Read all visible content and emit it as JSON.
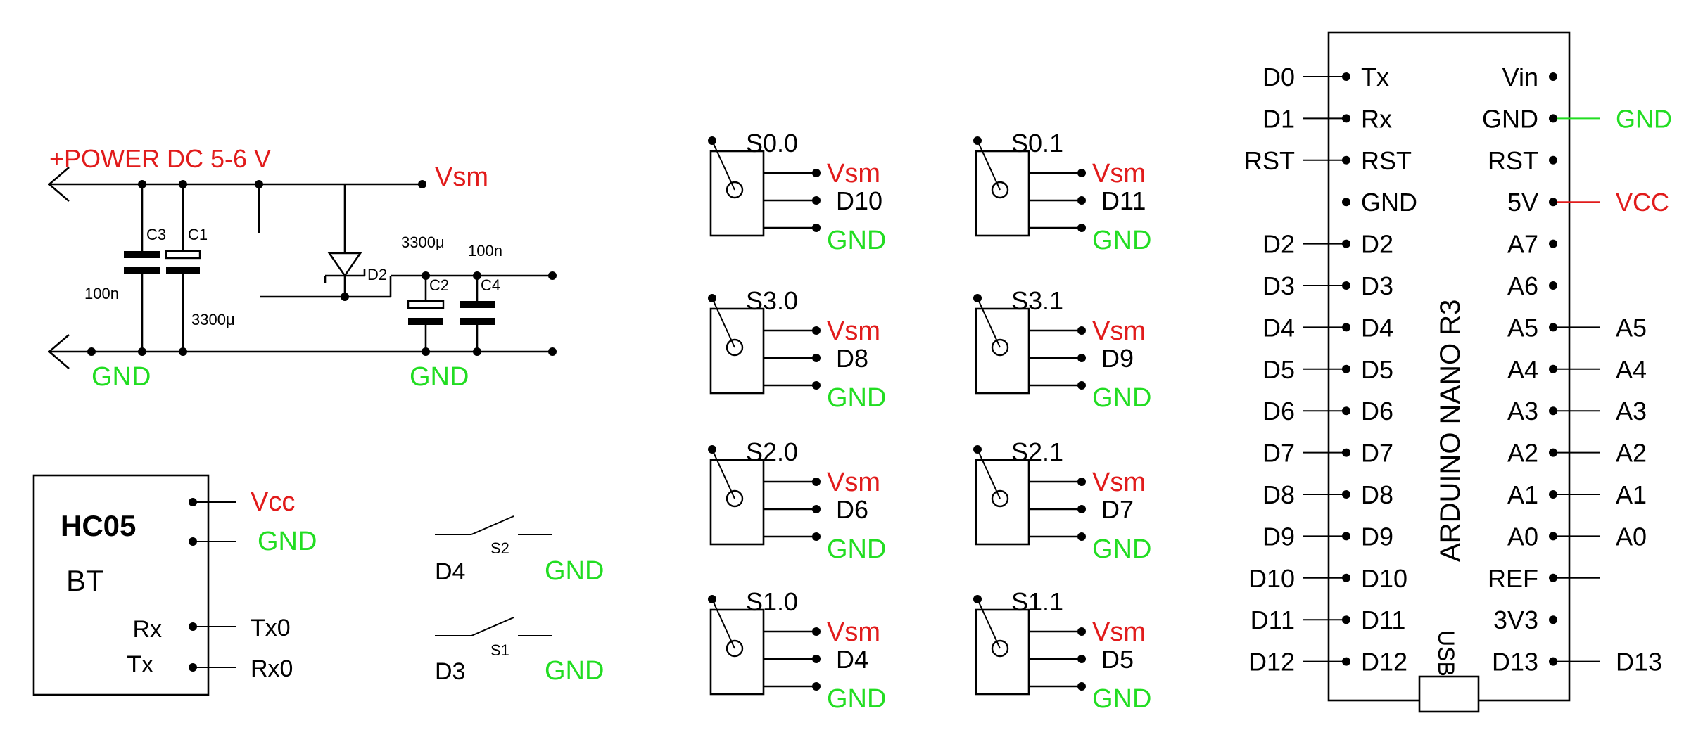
{
  "colors": {
    "power": "#e11b1b",
    "ground": "#22dd22",
    "wire": "#000000"
  },
  "power_supply": {
    "title": "+POWER DC 5-6 V",
    "vsm": "Vsm",
    "gnd_left": "GND",
    "gnd_right": "GND",
    "c3": "C3",
    "c1": "C1",
    "c2": "C2",
    "c4": "C4",
    "d2": "D2",
    "val_100n_left": "100n",
    "val_3300_left": "3300μ",
    "val_3300_right": "3300μ",
    "val_100n_right": "100n"
  },
  "hc05": {
    "name": "HC05",
    "subtitle": "BT",
    "pin_rx": "Rx",
    "pin_tx": "Tx",
    "vcc": "Vcc",
    "gnd": "GND",
    "tx0": "Tx0",
    "rx0": "Rx0"
  },
  "switches": [
    {
      "ref": "S2",
      "pin": "D4",
      "gnd": "GND"
    },
    {
      "ref": "S1",
      "pin": "D3",
      "gnd": "GND"
    }
  ],
  "servos": [
    {
      "name": "S0.0",
      "vsm": "Vsm",
      "signal": "D10",
      "gnd": "GND"
    },
    {
      "name": "S0.1",
      "vsm": "Vsm",
      "signal": "D11",
      "gnd": "GND"
    },
    {
      "name": "S3.0",
      "vsm": "Vsm",
      "signal": "D8",
      "gnd": "GND"
    },
    {
      "name": "S3.1",
      "vsm": "Vsm",
      "signal": "D9",
      "gnd": "GND"
    },
    {
      "name": "S2.0",
      "vsm": "Vsm",
      "signal": "D6",
      "gnd": "GND"
    },
    {
      "name": "S2.1",
      "vsm": "Vsm",
      "signal": "D7",
      "gnd": "GND"
    },
    {
      "name": "S1.0",
      "vsm": "Vsm",
      "signal": "D4",
      "gnd": "GND"
    },
    {
      "name": "S1.1",
      "vsm": "Vsm",
      "signal": "D5",
      "gnd": "GND"
    }
  ],
  "arduino": {
    "name": "ARDUINO NANO R3",
    "usb": "USB",
    "left_pins": [
      {
        "outer": "D0",
        "inner": "Tx"
      },
      {
        "outer": "D1",
        "inner": "Rx"
      },
      {
        "outer": "RST",
        "inner": "RST"
      },
      {
        "outer": "",
        "inner": "GND"
      },
      {
        "outer": "D2",
        "inner": "D2"
      },
      {
        "outer": "D3",
        "inner": "D3"
      },
      {
        "outer": "D4",
        "inner": "D4"
      },
      {
        "outer": "D5",
        "inner": "D5"
      },
      {
        "outer": "D6",
        "inner": "D6"
      },
      {
        "outer": "D7",
        "inner": "D7"
      },
      {
        "outer": "D8",
        "inner": "D8"
      },
      {
        "outer": "D9",
        "inner": "D9"
      },
      {
        "outer": "D10",
        "inner": "D10"
      },
      {
        "outer": "D11",
        "inner": "D11"
      },
      {
        "outer": "D12",
        "inner": "D12"
      }
    ],
    "right_pins": [
      {
        "inner": "Vin",
        "outer": ""
      },
      {
        "inner": "GND",
        "outer": "GND"
      },
      {
        "inner": "RST",
        "outer": ""
      },
      {
        "inner": "5V",
        "outer": "VCC"
      },
      {
        "inner": "A7",
        "outer": ""
      },
      {
        "inner": "A6",
        "outer": ""
      },
      {
        "inner": "A5",
        "outer": "A5"
      },
      {
        "inner": "A4",
        "outer": "A4"
      },
      {
        "inner": "A3",
        "outer": "A3"
      },
      {
        "inner": "A2",
        "outer": "A2"
      },
      {
        "inner": "A1",
        "outer": "A1"
      },
      {
        "inner": "A0",
        "outer": "A0"
      },
      {
        "inner": "REF",
        "outer": ""
      },
      {
        "inner": "3V3",
        "outer": ""
      },
      {
        "inner": "D13",
        "outer": "D13"
      }
    ]
  }
}
